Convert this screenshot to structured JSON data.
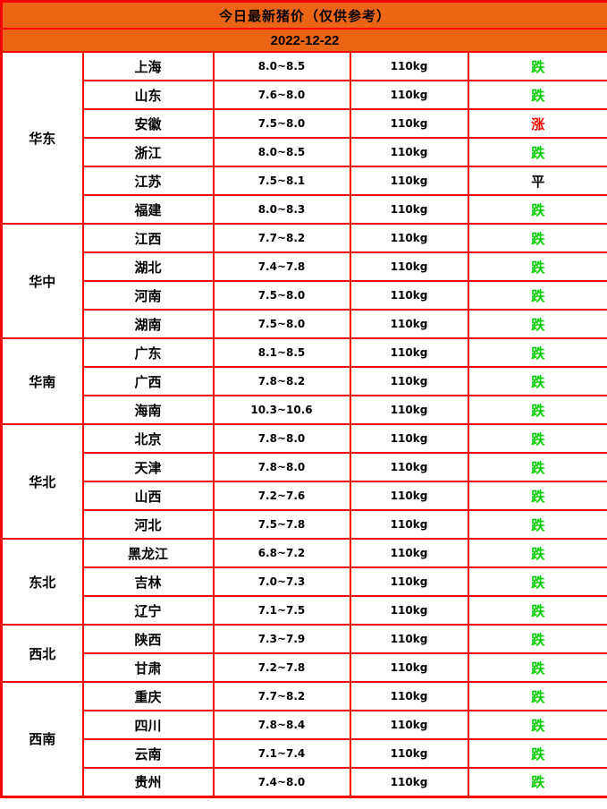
{
  "chart_data": {
    "type": "table",
    "title": "今日最新猪价（仅供参考）",
    "date": "2022-12-22",
    "regions": [
      {
        "name": "华东",
        "rows": [
          {
            "province": "上海",
            "price": "8.0~8.5",
            "weight": "110kg",
            "trend": "跌",
            "trend_type": "down"
          },
          {
            "province": "山东",
            "price": "7.6~8.0",
            "weight": "110kg",
            "trend": "跌",
            "trend_type": "down"
          },
          {
            "province": "安徽",
            "price": "7.5~8.0",
            "weight": "110kg",
            "trend": "涨",
            "trend_type": "up"
          },
          {
            "province": "浙江",
            "price": "8.0~8.5",
            "weight": "110kg",
            "trend": "跌",
            "trend_type": "down"
          },
          {
            "province": "江苏",
            "price": "7.5~8.1",
            "weight": "110kg",
            "trend": "平",
            "trend_type": "flat"
          },
          {
            "province": "福建",
            "price": "8.0~8.3",
            "weight": "110kg",
            "trend": "跌",
            "trend_type": "down"
          }
        ]
      },
      {
        "name": "华中",
        "rows": [
          {
            "province": "江西",
            "price": "7.7~8.2",
            "weight": "110kg",
            "trend": "跌",
            "trend_type": "down"
          },
          {
            "province": "湖北",
            "price": "7.4~7.8",
            "weight": "110kg",
            "trend": "跌",
            "trend_type": "down"
          },
          {
            "province": "河南",
            "price": "7.5~8.0",
            "weight": "110kg",
            "trend": "跌",
            "trend_type": "down"
          },
          {
            "province": "湖南",
            "price": "7.5~8.0",
            "weight": "110kg",
            "trend": "跌",
            "trend_type": "down"
          }
        ]
      },
      {
        "name": "华南",
        "rows": [
          {
            "province": "广东",
            "price": "8.1~8.5",
            "weight": "110kg",
            "trend": "跌",
            "trend_type": "down"
          },
          {
            "province": "广西",
            "price": "7.8~8.2",
            "weight": "110kg",
            "trend": "跌",
            "trend_type": "down"
          },
          {
            "province": "海南",
            "price": "10.3~10.6",
            "weight": "110kg",
            "trend": "跌",
            "trend_type": "down"
          }
        ]
      },
      {
        "name": "华北",
        "rows": [
          {
            "province": "北京",
            "price": "7.8~8.0",
            "weight": "110kg",
            "trend": "跌",
            "trend_type": "down"
          },
          {
            "province": "天津",
            "price": "7.8~8.0",
            "weight": "110kg",
            "trend": "跌",
            "trend_type": "down"
          },
          {
            "province": "山西",
            "price": "7.2~7.6",
            "weight": "110kg",
            "trend": "跌",
            "trend_type": "down"
          },
          {
            "province": "河北",
            "price": "7.5~7.8",
            "weight": "110kg",
            "trend": "跌",
            "trend_type": "down"
          }
        ]
      },
      {
        "name": "东北",
        "rows": [
          {
            "province": "黑龙江",
            "price": "6.8~7.2",
            "weight": "110kg",
            "trend": "跌",
            "trend_type": "down"
          },
          {
            "province": "吉林",
            "price": "7.0~7.3",
            "weight": "110kg",
            "trend": "跌",
            "trend_type": "down"
          },
          {
            "province": "辽宁",
            "price": "7.1~7.5",
            "weight": "110kg",
            "trend": "跌",
            "trend_type": "down"
          }
        ]
      },
      {
        "name": "西北",
        "rows": [
          {
            "province": "陕西",
            "price": "7.3~7.9",
            "weight": "110kg",
            "trend": "跌",
            "trend_type": "down"
          },
          {
            "province": "甘肃",
            "price": "7.2~7.8",
            "weight": "110kg",
            "trend": "跌",
            "trend_type": "down"
          }
        ]
      },
      {
        "name": "西南",
        "rows": [
          {
            "province": "重庆",
            "price": "7.7~8.2",
            "weight": "110kg",
            "trend": "跌",
            "trend_type": "down"
          },
          {
            "province": "四川",
            "price": "7.8~8.4",
            "weight": "110kg",
            "trend": "跌",
            "trend_type": "down"
          },
          {
            "province": "云南",
            "price": "7.1~7.4",
            "weight": "110kg",
            "trend": "跌",
            "trend_type": "down"
          },
          {
            "province": "贵州",
            "price": "7.4~8.0",
            "weight": "110kg",
            "trend": "跌",
            "trend_type": "down"
          }
        ]
      }
    ]
  },
  "colors": {
    "header_bg": "#ec6514",
    "border": "#fe0000",
    "trend_down": "#00cc00",
    "trend_up": "#ff0000",
    "trend_flat": "#000000"
  }
}
